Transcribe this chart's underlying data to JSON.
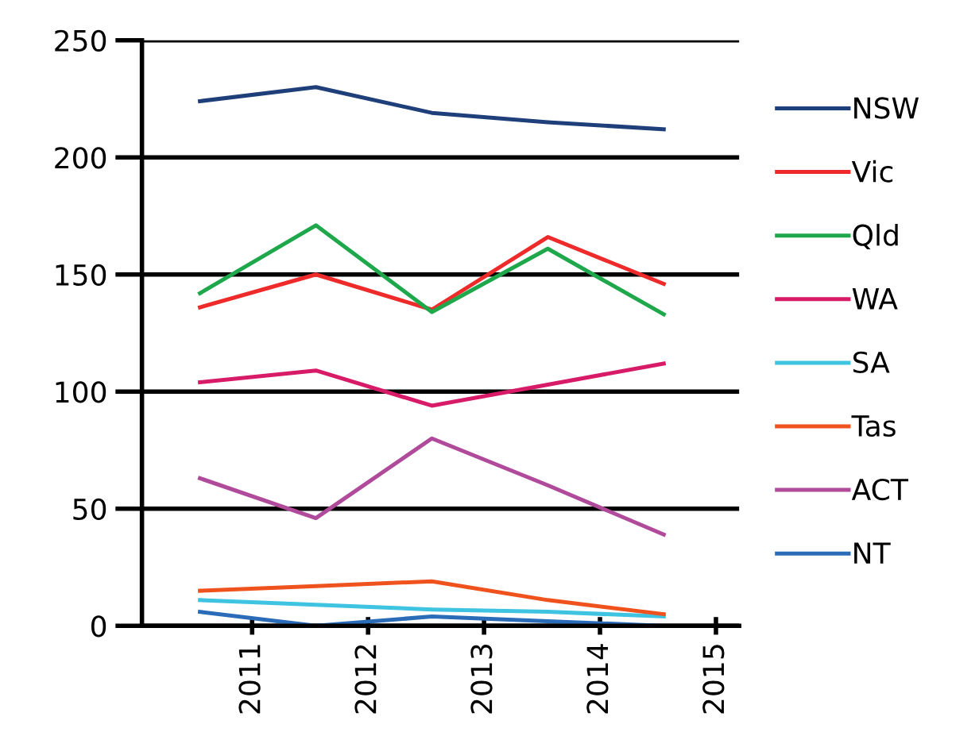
{
  "chart_data": {
    "type": "line",
    "x": [
      2010.55,
      2011.55,
      2012.55,
      2013.55,
      2014.55
    ],
    "xlim": [
      2010.05,
      2015.2
    ],
    "xticks": [
      2011,
      2012,
      2013,
      2014,
      2015
    ],
    "ylim": [
      0,
      250
    ],
    "yticks": [
      0,
      50,
      100,
      150,
      200,
      250
    ],
    "grid": "y",
    "legend": "right",
    "marker": "none",
    "series": [
      {
        "name": "NSW",
        "color": "#1f3f7a",
        "values": [
          224,
          230,
          219,
          215,
          212
        ]
      },
      {
        "name": "Vic",
        "color": "#ee2a2a",
        "values": [
          136,
          150,
          135,
          166,
          146
        ]
      },
      {
        "name": "Qld",
        "color": "#1ea84b",
        "values": [
          142,
          171,
          134,
          161,
          133
        ]
      },
      {
        "name": "WA",
        "color": "#d81b68",
        "values": [
          104,
          109,
          94,
          103,
          112
        ]
      },
      {
        "name": "SA",
        "color": "#3ec3e0",
        "values": [
          11,
          9,
          7,
          6,
          4
        ]
      },
      {
        "name": "Tas",
        "color": "#f0521e",
        "values": [
          15,
          17,
          19,
          11,
          5
        ]
      },
      {
        "name": "ACT",
        "color": "#b04a9a",
        "values": [
          63,
          46,
          80,
          60,
          39
        ]
      },
      {
        "name": "NT",
        "color": "#2a6cb8",
        "values": [
          6,
          0,
          4,
          2,
          0
        ]
      }
    ]
  }
}
